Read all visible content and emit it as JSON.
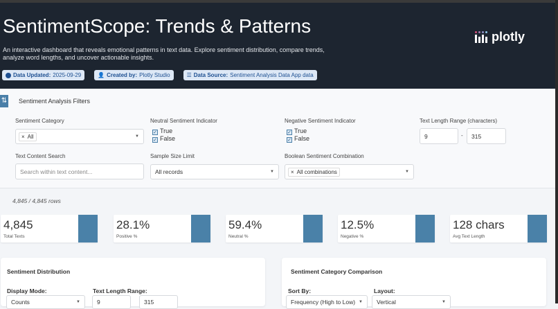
{
  "header": {
    "title": "SentimentScope: Trends & Patterns",
    "description": "An interactive dashboard that reveals emotional patterns in text data. Explore sentiment distribution, compare trends, analyze word lengths, and uncover actionable insights.",
    "badges": [
      {
        "label": "Data Updated:",
        "value": "2025-09-29",
        "icon": "check-circle-icon"
      },
      {
        "label": "Created by:",
        "value": "Plotly Studio",
        "icon": "user-icon"
      },
      {
        "label": "Data Source:",
        "value": "Sentiment Analysis Data App data",
        "icon": "database-icon"
      }
    ],
    "logo_text": "plotly"
  },
  "filters": {
    "title": "Sentiment Analysis Filters",
    "sentiment_category": {
      "label": "Sentiment Category",
      "chip": "All"
    },
    "neutral": {
      "label": "Neutral Sentiment Indicator",
      "options": [
        "True",
        "False"
      ]
    },
    "negative": {
      "label": "Negative Sentiment Indicator",
      "options": [
        "True",
        "False"
      ]
    },
    "text_length": {
      "label": "Text Length Range (characters)",
      "min": "9",
      "max": "315",
      "sep": "-"
    },
    "search": {
      "label": "Text Content Search",
      "placeholder": "Search within text content..."
    },
    "sample": {
      "label": "Sample Size Limit",
      "value": "All records"
    },
    "boolean": {
      "label": "Boolean Sentiment Combination",
      "chip": "All combinations"
    }
  },
  "row_count": "4,845 / 4,845 rows",
  "kpis": [
    {
      "value": "4,845",
      "label": "Total Texts"
    },
    {
      "value": "28.1%",
      "label": "Positive %"
    },
    {
      "value": "59.4%",
      "label": "Neutral %"
    },
    {
      "value": "12.5%",
      "label": "Negative %"
    },
    {
      "value": "128 chars",
      "label": "Avg Text Length"
    }
  ],
  "cards": {
    "distribution": {
      "title": "Sentiment Distribution",
      "mode_label": "Display Mode:",
      "mode_value": "Counts",
      "range_label": "Text Length Range:",
      "min": "9",
      "max": "315"
    },
    "comparison": {
      "title": "Sentiment Category Comparison",
      "sort_label": "Sort By:",
      "sort_value": "Frequency (High to Low)",
      "layout_label": "Layout:",
      "layout_value": "Vertical"
    }
  },
  "colors": {
    "header_bg": "#1d2530",
    "accent": "#4a81a8"
  }
}
